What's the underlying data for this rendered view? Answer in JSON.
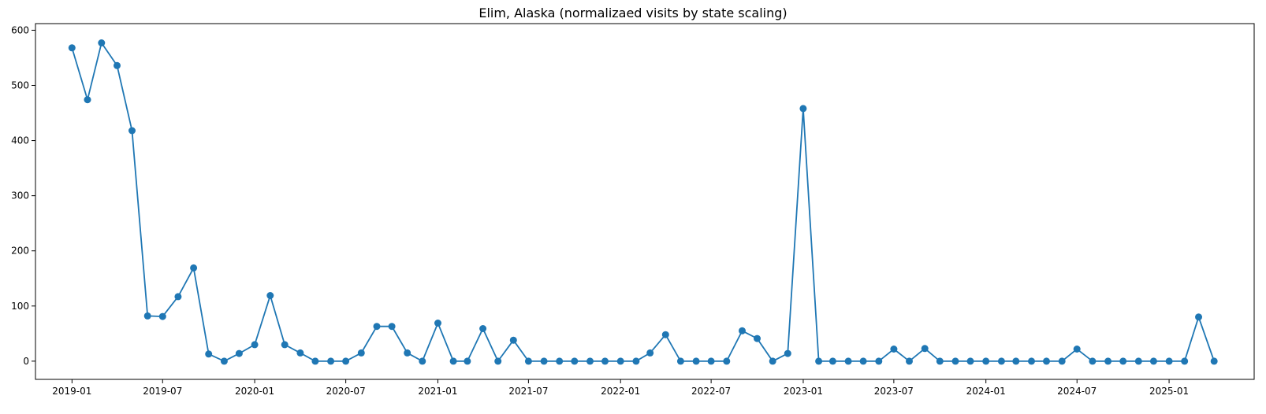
{
  "chart_data": {
    "type": "line",
    "title": "Elim, Alaska (normalizaed visits by state scaling)",
    "xlabel": "",
    "ylabel": "",
    "grid": false,
    "legend": "none",
    "color": "#1f77b4",
    "marker": "circle",
    "xlim": [
      "2018-10-20",
      "2025-06-20"
    ],
    "ylim": [
      -33,
      612
    ],
    "xticks": [
      "2019-01",
      "2019-07",
      "2020-01",
      "2020-07",
      "2021-01",
      "2021-07",
      "2022-01",
      "2022-07",
      "2023-01",
      "2023-07",
      "2024-01",
      "2024-07",
      "2025-01"
    ],
    "yticks": [
      0,
      100,
      200,
      300,
      400,
      500,
      600
    ],
    "series": [
      {
        "x": [
          "2019-01",
          "2019-02",
          "2019-03",
          "2019-04",
          "2019-05",
          "2019-06",
          "2019-07",
          "2019-08",
          "2019-09",
          "2019-10",
          "2019-11",
          "2019-12",
          "2020-01",
          "2020-02",
          "2020-03",
          "2020-04",
          "2020-05",
          "2020-06",
          "2020-07",
          "2020-08",
          "2020-09",
          "2020-10",
          "2020-11",
          "2020-12",
          "2021-01",
          "2021-02",
          "2021-03",
          "2021-04",
          "2021-05",
          "2021-06",
          "2021-07",
          "2021-08",
          "2021-09",
          "2021-10",
          "2021-11",
          "2021-12",
          "2022-01",
          "2022-02",
          "2022-03",
          "2022-04",
          "2022-05",
          "2022-06",
          "2022-07",
          "2022-08",
          "2022-09",
          "2022-10",
          "2022-11",
          "2022-12",
          "2023-01",
          "2023-02",
          "2023-03",
          "2023-04",
          "2023-05",
          "2023-06",
          "2023-07",
          "2023-08",
          "2023-09",
          "2023-10",
          "2023-11",
          "2023-12",
          "2024-01",
          "2024-02",
          "2024-03",
          "2024-04",
          "2024-05",
          "2024-06",
          "2024-07",
          "2024-08",
          "2024-09",
          "2024-10",
          "2024-11",
          "2024-12",
          "2025-01",
          "2025-02",
          "2025-03",
          "2025-04"
        ],
        "y": [
          568,
          474,
          577,
          536,
          418,
          82,
          81,
          117,
          169,
          13,
          0,
          14,
          30,
          119,
          30,
          15,
          0,
          0,
          0,
          15,
          63,
          63,
          15,
          0,
          69,
          0,
          0,
          59,
          0,
          38,
          0,
          0,
          0,
          0,
          0,
          0,
          0,
          0,
          15,
          48,
          0,
          0,
          0,
          0,
          55,
          41,
          0,
          14,
          458,
          0,
          0,
          0,
          0,
          0,
          22,
          0,
          23,
          0,
          0,
          0,
          0,
          0,
          0,
          0,
          0,
          0,
          22,
          0,
          0,
          0,
          0,
          0,
          0,
          0,
          80,
          0
        ]
      }
    ]
  }
}
